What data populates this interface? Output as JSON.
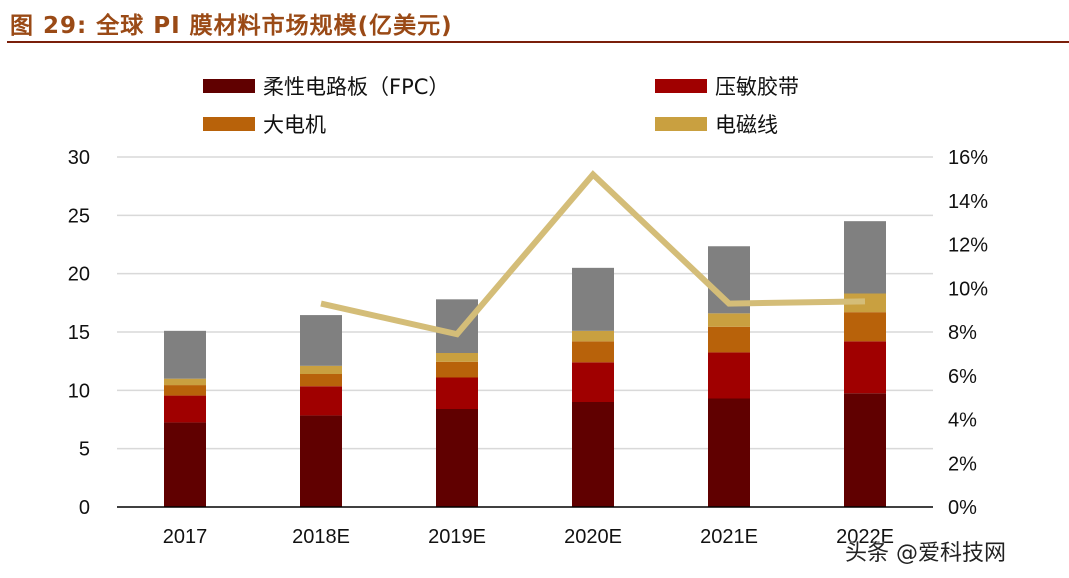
{
  "title": "图 29:  全球 PI 膜材料市场规模(亿美元)",
  "watermark": "头条 @爱科技网",
  "chart_data": {
    "type": "bar",
    "stacked": true,
    "categories": [
      "2017",
      "2018E",
      "2019E",
      "2020E",
      "2021E",
      "2022E"
    ],
    "series": [
      {
        "name": "柔性电路板（FPC）",
        "color": "#600000",
        "values": [
          7.25,
          7.85,
          8.4,
          9.0,
          9.3,
          9.75
        ]
      },
      {
        "name": "压敏胶带",
        "color": "#a00000",
        "values": [
          2.3,
          2.5,
          2.7,
          3.4,
          3.95,
          4.45
        ]
      },
      {
        "name": "大电机",
        "color": "#b8620a",
        "values": [
          0.9,
          1.05,
          1.35,
          1.8,
          2.2,
          2.5
        ]
      },
      {
        "name": "电磁线",
        "color": "#c9a040",
        "values": [
          0.55,
          0.7,
          0.75,
          0.9,
          1.15,
          1.6
        ]
      },
      {
        "name": "",
        "color": "#808080",
        "values": [
          4.1,
          4.35,
          4.6,
          5.4,
          5.75,
          6.2
        ]
      }
    ],
    "line": {
      "axis": "right",
      "color": "#d4bd78",
      "values": [
        null,
        9.3,
        7.9,
        15.2,
        9.3,
        9.4
      ]
    },
    "ylim_left": [
      0,
      30
    ],
    "yticks_left": [
      "0",
      "5",
      "10",
      "15",
      "20",
      "25",
      "30"
    ],
    "ylim_right": [
      0,
      16
    ],
    "yticks_right": [
      "0%",
      "2%",
      "4%",
      "6%",
      "8%",
      "10%",
      "12%",
      "14%",
      "16%"
    ],
    "grid": true,
    "legend_position": "top"
  }
}
